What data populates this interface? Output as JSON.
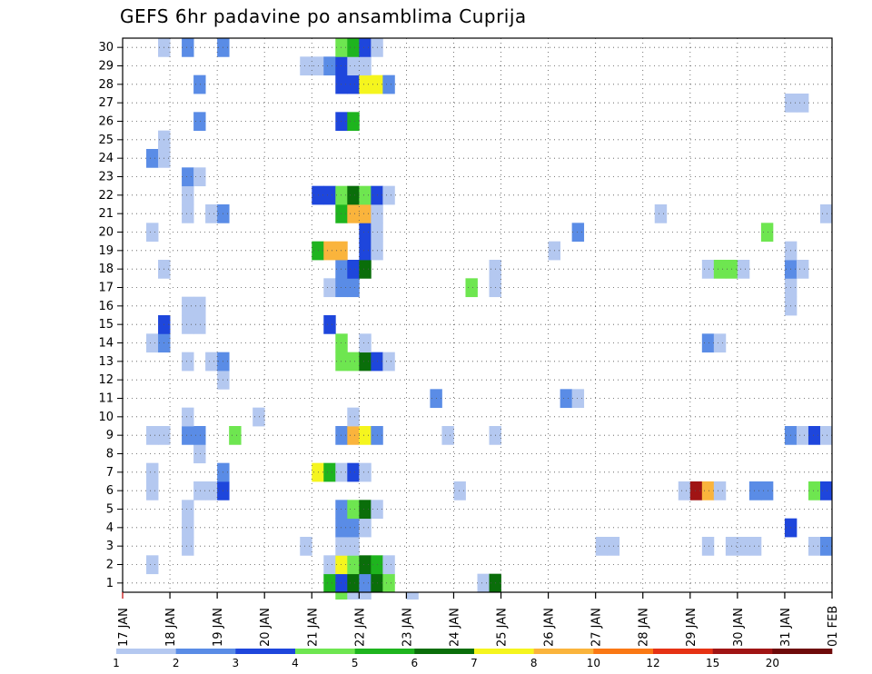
{
  "chart_data": {
    "type": "heatmap",
    "title": "GEFS 6hr padavine po ansamblima Cuprija",
    "xlabel": "",
    "ylabel": "",
    "x_tick_labels": [
      "17 JAN",
      "18 JAN",
      "19 JAN",
      "20 JAN",
      "21 JAN",
      "22 JAN",
      "23 JAN",
      "24 JAN",
      "25 JAN",
      "26 JAN",
      "27 JAN",
      "28 JAN",
      "29 JAN",
      "30 JAN",
      "31 JAN",
      "01 FEB"
    ],
    "y_tick_labels": [
      "1",
      "2",
      "3",
      "4",
      "5",
      "6",
      "7",
      "8",
      "9",
      "10",
      "11",
      "12",
      "13",
      "14",
      "15",
      "16",
      "17",
      "18",
      "19",
      "20",
      "21",
      "22",
      "23",
      "24",
      "25",
      "26",
      "27",
      "28",
      "29",
      "30"
    ],
    "x_range_steps": [
      0,
      60
    ],
    "y_range": [
      0,
      30
    ],
    "grid": true,
    "colorbar": {
      "labels": [
        "1",
        "2",
        "3",
        "4",
        "5",
        "6",
        "7",
        "8",
        "10",
        "12",
        "15",
        "20"
      ],
      "colors": [
        "#b4c8f0",
        "#5a8ce6",
        "#1e46dc",
        "#6ee650",
        "#1eb41e",
        "#0a6e0a",
        "#f5f51e",
        "#fab43c",
        "#fa7814",
        "#e63214",
        "#a01414",
        "#6e0a0a"
      ]
    },
    "cells": [
      [
        1,
        18,
        5
      ],
      [
        1,
        19,
        3
      ],
      [
        1,
        20,
        6
      ],
      [
        1,
        21,
        2
      ],
      [
        1,
        22,
        6
      ],
      [
        1,
        23,
        4
      ],
      [
        1,
        31,
        1
      ],
      [
        1,
        32,
        6
      ],
      [
        2,
        3,
        1
      ],
      [
        2,
        18,
        1
      ],
      [
        2,
        19,
        7
      ],
      [
        2,
        20,
        4
      ],
      [
        2,
        21,
        6
      ],
      [
        2,
        22,
        5
      ],
      [
        2,
        23,
        1
      ],
      [
        3,
        6,
        1
      ],
      [
        3,
        16,
        1
      ],
      [
        3,
        19,
        1
      ],
      [
        3,
        20,
        1
      ],
      [
        3,
        41,
        1
      ],
      [
        3,
        42,
        1
      ],
      [
        3,
        50,
        1
      ],
      [
        3,
        52,
        1
      ],
      [
        3,
        53,
        1
      ],
      [
        3,
        54,
        1
      ],
      [
        3,
        59,
        1
      ],
      [
        3,
        60,
        2
      ],
      [
        4,
        6,
        1
      ],
      [
        4,
        19,
        2
      ],
      [
        4,
        20,
        2
      ],
      [
        4,
        21,
        1
      ],
      [
        4,
        57,
        3
      ],
      [
        5,
        6,
        1
      ],
      [
        5,
        19,
        2
      ],
      [
        5,
        20,
        4
      ],
      [
        5,
        21,
        6
      ],
      [
        5,
        22,
        1
      ],
      [
        6,
        3,
        1
      ],
      [
        6,
        7,
        1
      ],
      [
        6,
        8,
        1
      ],
      [
        6,
        9,
        3
      ],
      [
        6,
        29,
        1
      ],
      [
        6,
        48,
        1
      ],
      [
        6,
        49,
        11
      ],
      [
        6,
        50,
        8
      ],
      [
        6,
        51,
        1
      ],
      [
        6,
        54,
        2
      ],
      [
        6,
        55,
        2
      ],
      [
        6,
        59,
        4
      ],
      [
        6,
        60,
        3
      ],
      [
        7,
        3,
        1
      ],
      [
        7,
        9,
        2
      ],
      [
        7,
        17,
        7
      ],
      [
        7,
        18,
        5
      ],
      [
        7,
        19,
        1
      ],
      [
        7,
        20,
        3
      ],
      [
        7,
        21,
        1
      ],
      [
        8,
        7,
        1
      ],
      [
        9,
        3,
        1
      ],
      [
        9,
        4,
        1
      ],
      [
        9,
        6,
        2
      ],
      [
        9,
        7,
        2
      ],
      [
        9,
        10,
        4
      ],
      [
        9,
        19,
        2
      ],
      [
        9,
        20,
        8
      ],
      [
        9,
        21,
        7
      ],
      [
        9,
        22,
        2
      ],
      [
        9,
        28,
        1
      ],
      [
        9,
        32,
        1
      ],
      [
        9,
        57,
        2
      ],
      [
        9,
        58,
        1
      ],
      [
        9,
        59,
        3
      ],
      [
        9,
        60,
        1
      ],
      [
        10,
        6,
        1
      ],
      [
        10,
        12,
        1
      ],
      [
        10,
        20,
        1
      ],
      [
        11,
        27,
        2
      ],
      [
        11,
        38,
        2
      ],
      [
        11,
        39,
        1
      ],
      [
        12,
        9,
        1
      ],
      [
        13,
        6,
        1
      ],
      [
        13,
        8,
        1
      ],
      [
        13,
        9,
        2
      ],
      [
        13,
        19,
        4
      ],
      [
        13,
        20,
        4
      ],
      [
        13,
        21,
        6
      ],
      [
        13,
        22,
        3
      ],
      [
        13,
        23,
        1
      ],
      [
        14,
        3,
        1
      ],
      [
        14,
        4,
        2
      ],
      [
        14,
        19,
        4
      ],
      [
        14,
        21,
        1
      ],
      [
        14,
        50,
        2
      ],
      [
        14,
        51,
        1
      ],
      [
        15,
        4,
        3
      ],
      [
        15,
        6,
        1
      ],
      [
        15,
        7,
        1
      ],
      [
        15,
        18,
        3
      ],
      [
        16,
        6,
        1
      ],
      [
        16,
        7,
        1
      ],
      [
        16,
        57,
        1
      ],
      [
        17,
        18,
        1
      ],
      [
        17,
        19,
        2
      ],
      [
        17,
        20,
        2
      ],
      [
        17,
        30,
        4
      ],
      [
        17,
        32,
        1
      ],
      [
        17,
        57,
        1
      ],
      [
        18,
        4,
        1
      ],
      [
        18,
        19,
        2
      ],
      [
        18,
        20,
        3
      ],
      [
        18,
        21,
        6
      ],
      [
        18,
        32,
        1
      ],
      [
        18,
        50,
        1
      ],
      [
        18,
        51,
        4
      ],
      [
        18,
        52,
        4
      ],
      [
        18,
        53,
        1
      ],
      [
        18,
        57,
        2
      ],
      [
        18,
        58,
        1
      ],
      [
        19,
        17,
        5
      ],
      [
        19,
        18,
        8
      ],
      [
        19,
        19,
        8
      ],
      [
        19,
        21,
        3
      ],
      [
        19,
        22,
        1
      ],
      [
        19,
        37,
        1
      ],
      [
        19,
        57,
        1
      ],
      [
        20,
        3,
        1
      ],
      [
        20,
        21,
        3
      ],
      [
        20,
        22,
        1
      ],
      [
        20,
        39,
        2
      ],
      [
        20,
        55,
        4
      ],
      [
        21,
        6,
        1
      ],
      [
        21,
        8,
        1
      ],
      [
        21,
        9,
        2
      ],
      [
        21,
        19,
        5
      ],
      [
        21,
        20,
        8
      ],
      [
        21,
        21,
        8
      ],
      [
        21,
        22,
        1
      ],
      [
        21,
        46,
        1
      ],
      [
        21,
        60,
        1
      ],
      [
        22,
        6,
        1
      ],
      [
        22,
        17,
        3
      ],
      [
        22,
        18,
        3
      ],
      [
        22,
        19,
        4
      ],
      [
        22,
        20,
        6
      ],
      [
        22,
        21,
        4
      ],
      [
        22,
        22,
        3
      ],
      [
        22,
        23,
        1
      ],
      [
        23,
        6,
        2
      ],
      [
        23,
        7,
        1
      ],
      [
        24,
        3,
        2
      ],
      [
        24,
        4,
        1
      ],
      [
        25,
        4,
        1
      ],
      [
        26,
        7,
        2
      ],
      [
        26,
        19,
        3
      ],
      [
        26,
        20,
        5
      ],
      [
        27,
        57,
        1
      ],
      [
        27,
        58,
        1
      ],
      [
        28,
        7,
        2
      ],
      [
        28,
        19,
        3
      ],
      [
        28,
        20,
        3
      ],
      [
        28,
        21,
        7
      ],
      [
        28,
        22,
        7
      ],
      [
        28,
        23,
        2
      ],
      [
        29,
        16,
        1
      ],
      [
        29,
        17,
        1
      ],
      [
        29,
        18,
        2
      ],
      [
        29,
        19,
        3
      ],
      [
        29,
        20,
        1
      ],
      [
        29,
        21,
        1
      ],
      [
        30,
        4,
        1
      ],
      [
        30,
        6,
        2
      ],
      [
        30,
        9,
        2
      ],
      [
        30,
        19,
        4
      ],
      [
        30,
        20,
        5
      ],
      [
        30,
        21,
        3
      ],
      [
        30,
        22,
        1
      ]
    ],
    "below_axis_cells": [
      [
        19,
        4
      ],
      [
        20,
        1
      ],
      [
        21,
        1
      ],
      [
        25,
        1
      ]
    ]
  }
}
